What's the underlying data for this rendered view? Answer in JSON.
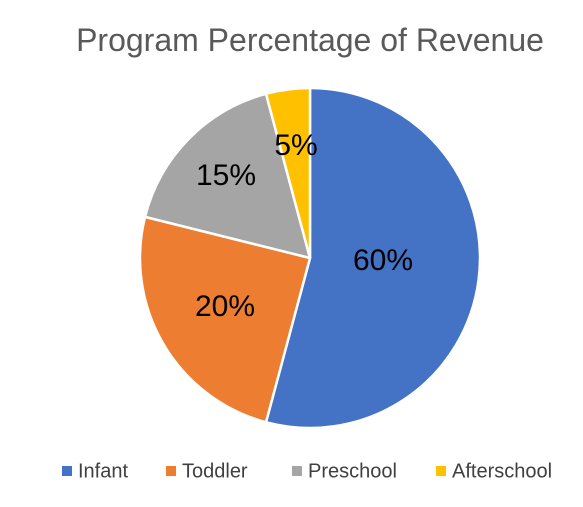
{
  "chart_data": {
    "type": "pie",
    "title": "Program Percentage of Revenue",
    "categories": [
      "Infant",
      "Toddler",
      "Preschool",
      "Afterschool"
    ],
    "values": [
      60,
      20,
      15,
      5
    ],
    "labels": [
      "60%",
      "20%",
      "15%",
      "5%"
    ],
    "colors": [
      "#4472C4",
      "#ED7D31",
      "#A5A5A5",
      "#FFC000"
    ],
    "legend": {
      "position": "bottom",
      "entries": [
        "Infant",
        "Toddler",
        "Preschool",
        "Afterschool"
      ]
    }
  }
}
